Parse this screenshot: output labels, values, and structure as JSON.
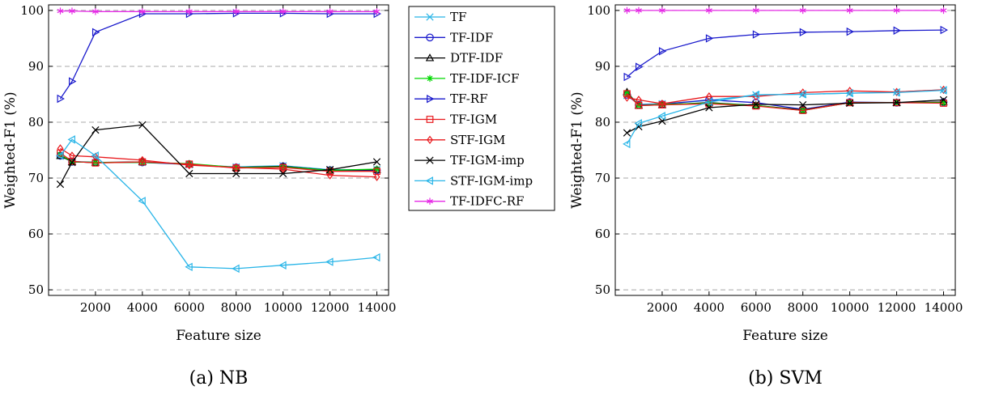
{
  "chart_data": [
    {
      "type": "line",
      "caption": "(a) NB",
      "xlabel": "Feature size",
      "ylabel": "Weighted-F1 (%)",
      "xlim": [
        0,
        14500
      ],
      "ylim": [
        49,
        101
      ],
      "xticks": [
        2000,
        4000,
        6000,
        8000,
        10000,
        12000,
        14000
      ],
      "xtick_labels": [
        "2000",
        "4000",
        "6000",
        "8000",
        "10000",
        "12000",
        "14000"
      ],
      "yticks": [
        50,
        60,
        70,
        80,
        90,
        100
      ],
      "ytick_labels": [
        "50",
        "60",
        "70",
        "80",
        "90",
        "100"
      ],
      "grid": "horizontal dashed",
      "series": [
        {
          "name": "TF",
          "color": "#29b5e8",
          "marker": "x",
          "x": [
            500,
            1000,
            2000,
            4000,
            6000,
            8000,
            10000,
            12000,
            14000
          ],
          "values": [
            74.0,
            73.0,
            72.8,
            72.8,
            72.4,
            72.0,
            72.2,
            71.5,
            71.5
          ]
        },
        {
          "name": "TF-IDF",
          "color": "#1a1acc",
          "marker": "circle",
          "x": [
            500,
            1000,
            2000,
            4000,
            6000,
            8000,
            10000,
            12000,
            14000
          ],
          "values": [
            74.0,
            72.9,
            72.8,
            72.8,
            72.5,
            71.9,
            72.1,
            71.4,
            71.4
          ]
        },
        {
          "name": "DTF-IDF",
          "color": "#000000",
          "marker": "triangle",
          "x": [
            500,
            1000,
            2000,
            4000,
            6000,
            8000,
            10000,
            12000,
            14000
          ],
          "values": [
            74.0,
            72.9,
            72.8,
            72.9,
            72.5,
            71.9,
            72.1,
            71.4,
            71.5
          ]
        },
        {
          "name": "TF-IDF-ICF",
          "color": "#00d800",
          "marker": "star",
          "x": [
            500,
            1000,
            2000,
            4000,
            6000,
            8000,
            10000,
            12000,
            14000
          ],
          "values": [
            74.2,
            72.9,
            72.8,
            72.8,
            72.6,
            71.9,
            72.0,
            71.4,
            71.6
          ]
        },
        {
          "name": "TF-RF",
          "color": "#1a1acc",
          "marker": "triangle-right",
          "x": [
            500,
            1000,
            2000,
            4000,
            6000,
            8000,
            10000,
            12000,
            14000
          ],
          "values": [
            84.2,
            87.3,
            96.1,
            99.4,
            99.4,
            99.5,
            99.5,
            99.4,
            99.4
          ]
        },
        {
          "name": "TF-IGM",
          "color": "#e8181c",
          "marker": "square",
          "x": [
            500,
            1000,
            2000,
            4000,
            6000,
            8000,
            10000,
            12000,
            14000
          ],
          "values": [
            74.5,
            73.0,
            72.7,
            72.9,
            72.5,
            71.8,
            71.9,
            71.2,
            71.2
          ]
        },
        {
          "name": "STF-IGM",
          "color": "#e8181c",
          "marker": "diamond",
          "x": [
            500,
            1000,
            2000,
            4000,
            6000,
            8000,
            10000,
            12000,
            14000
          ],
          "values": [
            75.3,
            74.0,
            73.8,
            73.2,
            72.3,
            71.9,
            71.6,
            70.5,
            70.2
          ]
        },
        {
          "name": "TF-IGM-imp",
          "color": "#000000",
          "marker": "x",
          "x": [
            500,
            1000,
            2000,
            4000,
            6000,
            8000,
            10000,
            12000,
            14000
          ],
          "values": [
            68.9,
            72.8,
            78.6,
            79.5,
            70.8,
            70.8,
            70.8,
            71.5,
            72.9
          ]
        },
        {
          "name": "STF-IGM-imp",
          "color": "#29b5e8",
          "marker": "triangle-left",
          "x": [
            500,
            1000,
            2000,
            4000,
            6000,
            8000,
            10000,
            12000,
            14000
          ],
          "values": [
            74.0,
            76.9,
            74.0,
            65.9,
            54.1,
            53.8,
            54.4,
            55.0,
            55.8
          ]
        },
        {
          "name": "TF-IDFC-RF",
          "color": "#e62ae6",
          "marker": "asterisk",
          "x": [
            500,
            1000,
            2000,
            4000,
            6000,
            8000,
            10000,
            12000,
            14000
          ],
          "values": [
            99.9,
            99.9,
            99.8,
            99.8,
            99.8,
            99.8,
            99.8,
            99.8,
            99.8
          ]
        }
      ]
    },
    {
      "type": "line",
      "caption": "(b) SVM",
      "xlabel": "Feature size",
      "ylabel": "Weighted-F1 (%)",
      "xlim": [
        0,
        14500
      ],
      "ylim": [
        49,
        101
      ],
      "xticks": [
        2000,
        4000,
        6000,
        8000,
        10000,
        12000,
        14000
      ],
      "xtick_labels": [
        "2000",
        "4000",
        "6000",
        "8000",
        "10000",
        "12000",
        "14000"
      ],
      "yticks": [
        50,
        60,
        70,
        80,
        90,
        100
      ],
      "ytick_labels": [
        "50",
        "60",
        "70",
        "80",
        "90",
        "100"
      ],
      "grid": "horizontal dashed",
      "series": [
        {
          "name": "TF",
          "color": "#29b5e8",
          "marker": "x",
          "x": [
            500,
            1000,
            2000,
            4000,
            6000,
            8000,
            10000,
            12000,
            14000
          ],
          "values": [
            84.8,
            83.2,
            83.3,
            83.9,
            84.9,
            85.0,
            85.2,
            85.4,
            85.8
          ]
        },
        {
          "name": "TF-IDF",
          "color": "#1a1acc",
          "marker": "circle",
          "x": [
            500,
            1000,
            2000,
            4000,
            6000,
            8000,
            10000,
            12000,
            14000
          ],
          "values": [
            84.9,
            83.1,
            83.2,
            84.0,
            83.5,
            82.3,
            83.6,
            83.5,
            83.6
          ]
        },
        {
          "name": "DTF-IDF",
          "color": "#000000",
          "marker": "triangle",
          "x": [
            500,
            1000,
            2000,
            4000,
            6000,
            8000,
            10000,
            12000,
            14000
          ],
          "values": [
            85.4,
            83.0,
            83.1,
            83.5,
            83.0,
            82.2,
            83.5,
            83.5,
            83.6
          ]
        },
        {
          "name": "TF-IDF-ICF",
          "color": "#00d800",
          "marker": "star",
          "x": [
            500,
            1000,
            2000,
            4000,
            6000,
            8000,
            10000,
            12000,
            14000
          ],
          "values": [
            85.2,
            83.0,
            83.2,
            83.4,
            83.0,
            82.1,
            83.5,
            83.5,
            83.5
          ]
        },
        {
          "name": "TF-RF",
          "color": "#1a1acc",
          "marker": "triangle-right",
          "x": [
            500,
            1000,
            2000,
            4000,
            6000,
            8000,
            10000,
            12000,
            14000
          ],
          "values": [
            88.1,
            89.9,
            92.7,
            95.0,
            95.7,
            96.1,
            96.2,
            96.4,
            96.5
          ]
        },
        {
          "name": "TF-IGM",
          "color": "#e8181c",
          "marker": "square",
          "x": [
            500,
            1000,
            2000,
            4000,
            6000,
            8000,
            10000,
            12000,
            14000
          ],
          "values": [
            85.1,
            83.0,
            83.1,
            83.3,
            82.9,
            82.1,
            83.5,
            83.5,
            83.4
          ]
        },
        {
          "name": "STF-IGM",
          "color": "#e8181c",
          "marker": "diamond",
          "x": [
            500,
            1000,
            2000,
            4000,
            6000,
            8000,
            10000,
            12000,
            14000
          ],
          "values": [
            84.4,
            84.0,
            83.3,
            84.6,
            84.6,
            85.3,
            85.6,
            85.4,
            85.8
          ]
        },
        {
          "name": "TF-IGM-imp",
          "color": "#000000",
          "marker": "x",
          "x": [
            500,
            1000,
            2000,
            4000,
            6000,
            8000,
            10000,
            12000,
            14000
          ],
          "values": [
            78.1,
            79.2,
            80.2,
            82.6,
            83.2,
            83.1,
            83.4,
            83.5,
            84.0
          ]
        },
        {
          "name": "STF-IGM-imp",
          "color": "#29b5e8",
          "marker": "triangle-left",
          "x": [
            500,
            1000,
            2000,
            4000,
            6000,
            8000,
            10000,
            12000,
            14000
          ],
          "values": [
            76.1,
            79.8,
            81.1,
            83.6,
            84.9,
            85.0,
            85.2,
            85.3,
            85.7
          ]
        },
        {
          "name": "TF-IDFC-RF",
          "color": "#e62ae6",
          "marker": "asterisk",
          "x": [
            500,
            1000,
            2000,
            4000,
            6000,
            8000,
            10000,
            12000,
            14000
          ],
          "values": [
            100.0,
            100.0,
            100.0,
            100.0,
            100.0,
            100.0,
            100.0,
            100.0,
            100.0
          ]
        }
      ]
    }
  ]
}
